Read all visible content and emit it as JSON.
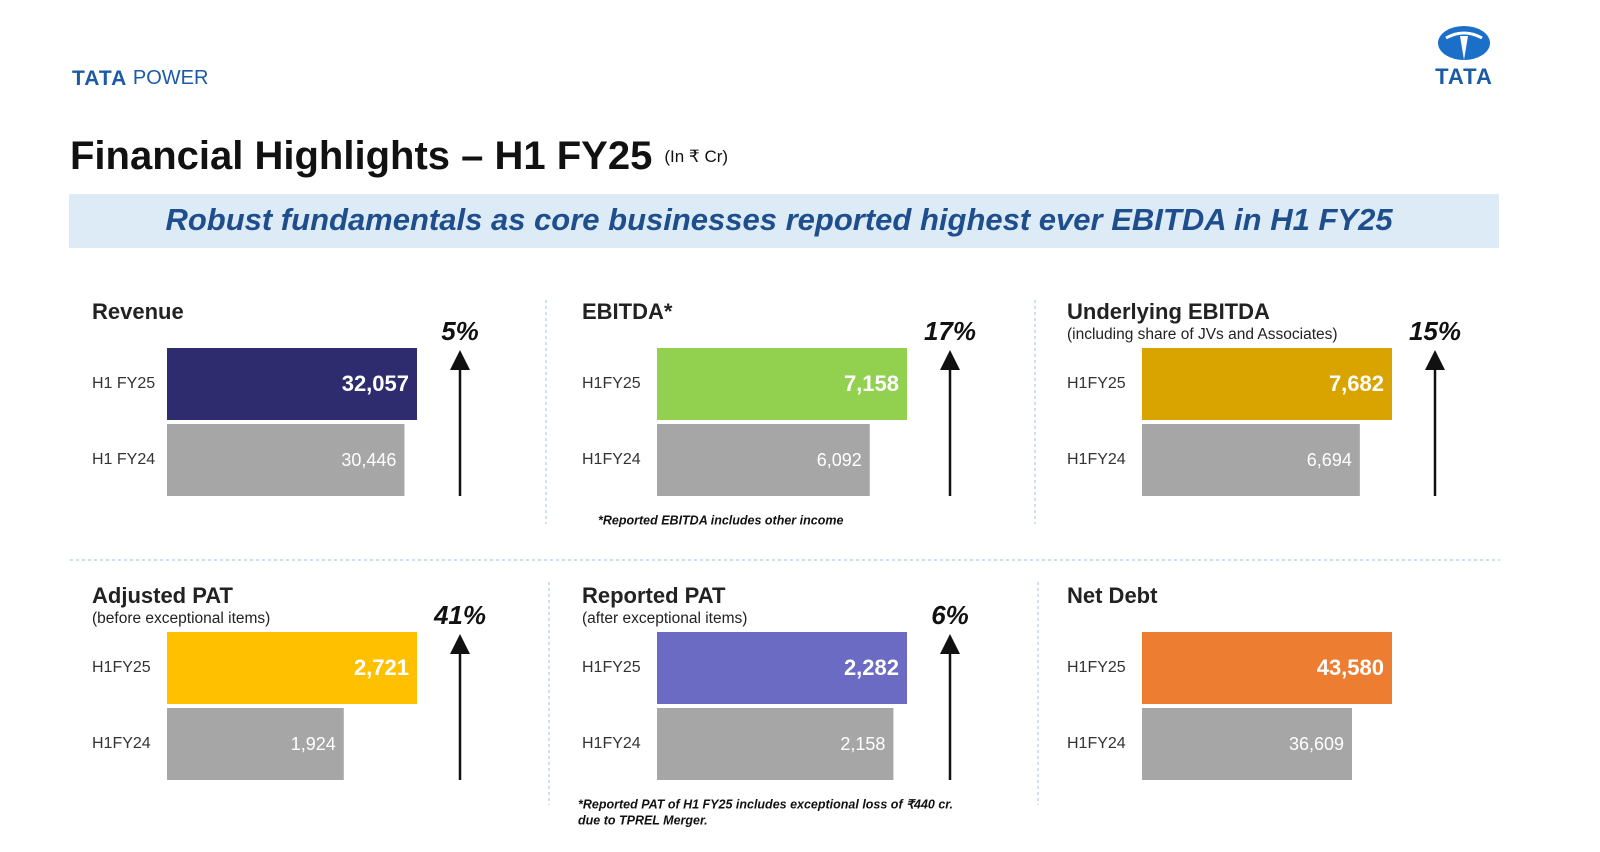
{
  "header": {
    "logo_left_bold": "TATA",
    "logo_left_rest": "POWER",
    "logo_right": "TATA",
    "title": "Financial Highlights – H1 FY25",
    "unit": "(In ₹ Cr)",
    "banner": "Robust fundamentals as core businesses reported highest ever EBITDA in H1 FY25"
  },
  "chart_data": [
    {
      "type": "bar",
      "orientation": "horizontal",
      "title": "Revenue",
      "categories": [
        "H1 FY25",
        "H1 FY24"
      ],
      "values": [
        32057,
        30446
      ],
      "value_labels": [
        "32,057",
        "30,446"
      ],
      "colors": [
        "#2e2c6e",
        "#a6a6a6"
      ],
      "annotation": "5%"
    },
    {
      "type": "bar",
      "orientation": "horizontal",
      "title": "EBITDA*",
      "categories": [
        "H1FY25",
        "H1FY24"
      ],
      "values": [
        7158,
        6092
      ],
      "value_labels": [
        "7,158",
        "6,092"
      ],
      "colors": [
        "#92d050",
        "#a6a6a6"
      ],
      "annotation": "17%",
      "footnote": [
        "*Reported EBITDA includes other income"
      ]
    },
    {
      "type": "bar",
      "orientation": "horizontal",
      "title": "Underlying EBITDA",
      "subtitle": "(including share of JVs and Associates)",
      "categories": [
        "H1FY25",
        "H1FY24"
      ],
      "values": [
        7682,
        6694
      ],
      "value_labels": [
        "7,682",
        "6,694"
      ],
      "colors": [
        "#d9a300",
        "#a6a6a6"
      ],
      "annotation": "15%"
    },
    {
      "type": "bar",
      "orientation": "horizontal",
      "title": "Adjusted PAT",
      "subtitle": "(before exceptional items)",
      "categories": [
        "H1FY25",
        "H1FY24"
      ],
      "values": [
        2721,
        1924
      ],
      "value_labels": [
        "2,721",
        "1,924"
      ],
      "colors": [
        "#ffc000",
        "#a6a6a6"
      ],
      "annotation": "41%"
    },
    {
      "type": "bar",
      "orientation": "horizontal",
      "title": "Reported PAT",
      "subtitle": "(after exceptional items)",
      "categories": [
        "H1FY25",
        "H1FY24"
      ],
      "values": [
        2282,
        2158
      ],
      "value_labels": [
        "2,282",
        "2,158"
      ],
      "colors": [
        "#6b6bc4",
        "#a6a6a6"
      ],
      "annotation": "6%",
      "footnote": [
        "*Reported PAT of H1 FY25 includes exceptional loss of ₹440 cr.",
        "due to  TPREL Merger."
      ]
    },
    {
      "type": "bar",
      "orientation": "horizontal",
      "title": "Net Debt",
      "categories": [
        "H1FY25",
        "H1FY24"
      ],
      "values": [
        43580,
        36609
      ],
      "value_labels": [
        "43,580",
        "36,609"
      ],
      "colors": [
        "#ed7d31",
        "#a6a6a6"
      ]
    }
  ]
}
